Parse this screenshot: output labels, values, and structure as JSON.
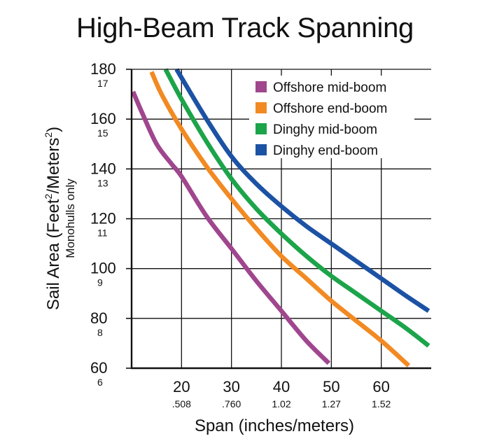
{
  "chart_data": {
    "type": "line",
    "title": "High-Beam Track Spanning",
    "xlabel": "Span (inches/meters)",
    "ylabel_parts": [
      "Sail Area (Feet",
      "2",
      "/Meters",
      "2",
      ")"
    ],
    "ylabel_sub": "Monohulls only",
    "xlim": [
      10,
      70
    ],
    "ylim": [
      60,
      180
    ],
    "x_ticks": [
      {
        "value": 20,
        "label": "20",
        "sub": ".508"
      },
      {
        "value": 30,
        "label": "30",
        "sub": ".760"
      },
      {
        "value": 40,
        "label": "40",
        "sub": "1.02"
      },
      {
        "value": 50,
        "label": "50",
        "sub": "1.27"
      },
      {
        "value": 60,
        "label": "60",
        "sub": "1.52"
      }
    ],
    "y_ticks": [
      {
        "value": 180,
        "label": "180",
        "sub": "17"
      },
      {
        "value": 160,
        "label": "160",
        "sub": "15"
      },
      {
        "value": 140,
        "label": "140",
        "sub": "13"
      },
      {
        "value": 120,
        "label": "120",
        "sub": "11"
      },
      {
        "value": 100,
        "label": "100",
        "sub": "9"
      },
      {
        "value": 80,
        "label": "80",
        "sub": "8"
      },
      {
        "value": 60,
        "label": "60",
        "sub": "6"
      }
    ],
    "grid": true,
    "legend_position": "top-right",
    "series": [
      {
        "name": "Offshore mid-boom",
        "color": "#a0468e",
        "x": [
          10.3,
          12,
          15,
          18,
          20,
          25,
          30,
          35,
          40,
          45,
          49.5
        ],
        "y": [
          171,
          163,
          150,
          142,
          137,
          121,
          108,
          95,
          83,
          71,
          62
        ]
      },
      {
        "name": "Offshore end-boom",
        "color": "#f28a23",
        "x": [
          14,
          16,
          20,
          25,
          30,
          35,
          40,
          45,
          50,
          55,
          60,
          65.5
        ],
        "y": [
          179,
          170,
          156,
          141,
          128,
          116,
          105,
          96,
          87,
          79,
          71,
          61
        ]
      },
      {
        "name": "Dinghy mid-boom",
        "color": "#1ca44a",
        "x": [
          16.8,
          20,
          25,
          30,
          35,
          40,
          45,
          50,
          55,
          60,
          65,
          69.5
        ],
        "y": [
          180,
          168,
          151,
          136,
          124,
          114,
          105,
          97,
          90,
          83,
          76,
          69
        ]
      },
      {
        "name": "Dinghy end-boom",
        "color": "#1c52a4",
        "x": [
          19,
          25,
          30,
          35,
          40,
          45,
          50,
          55,
          60,
          65,
          69.5
        ],
        "y": [
          180,
          160,
          145,
          134,
          125,
          117,
          110,
          103,
          96,
          89,
          83
        ]
      }
    ]
  }
}
